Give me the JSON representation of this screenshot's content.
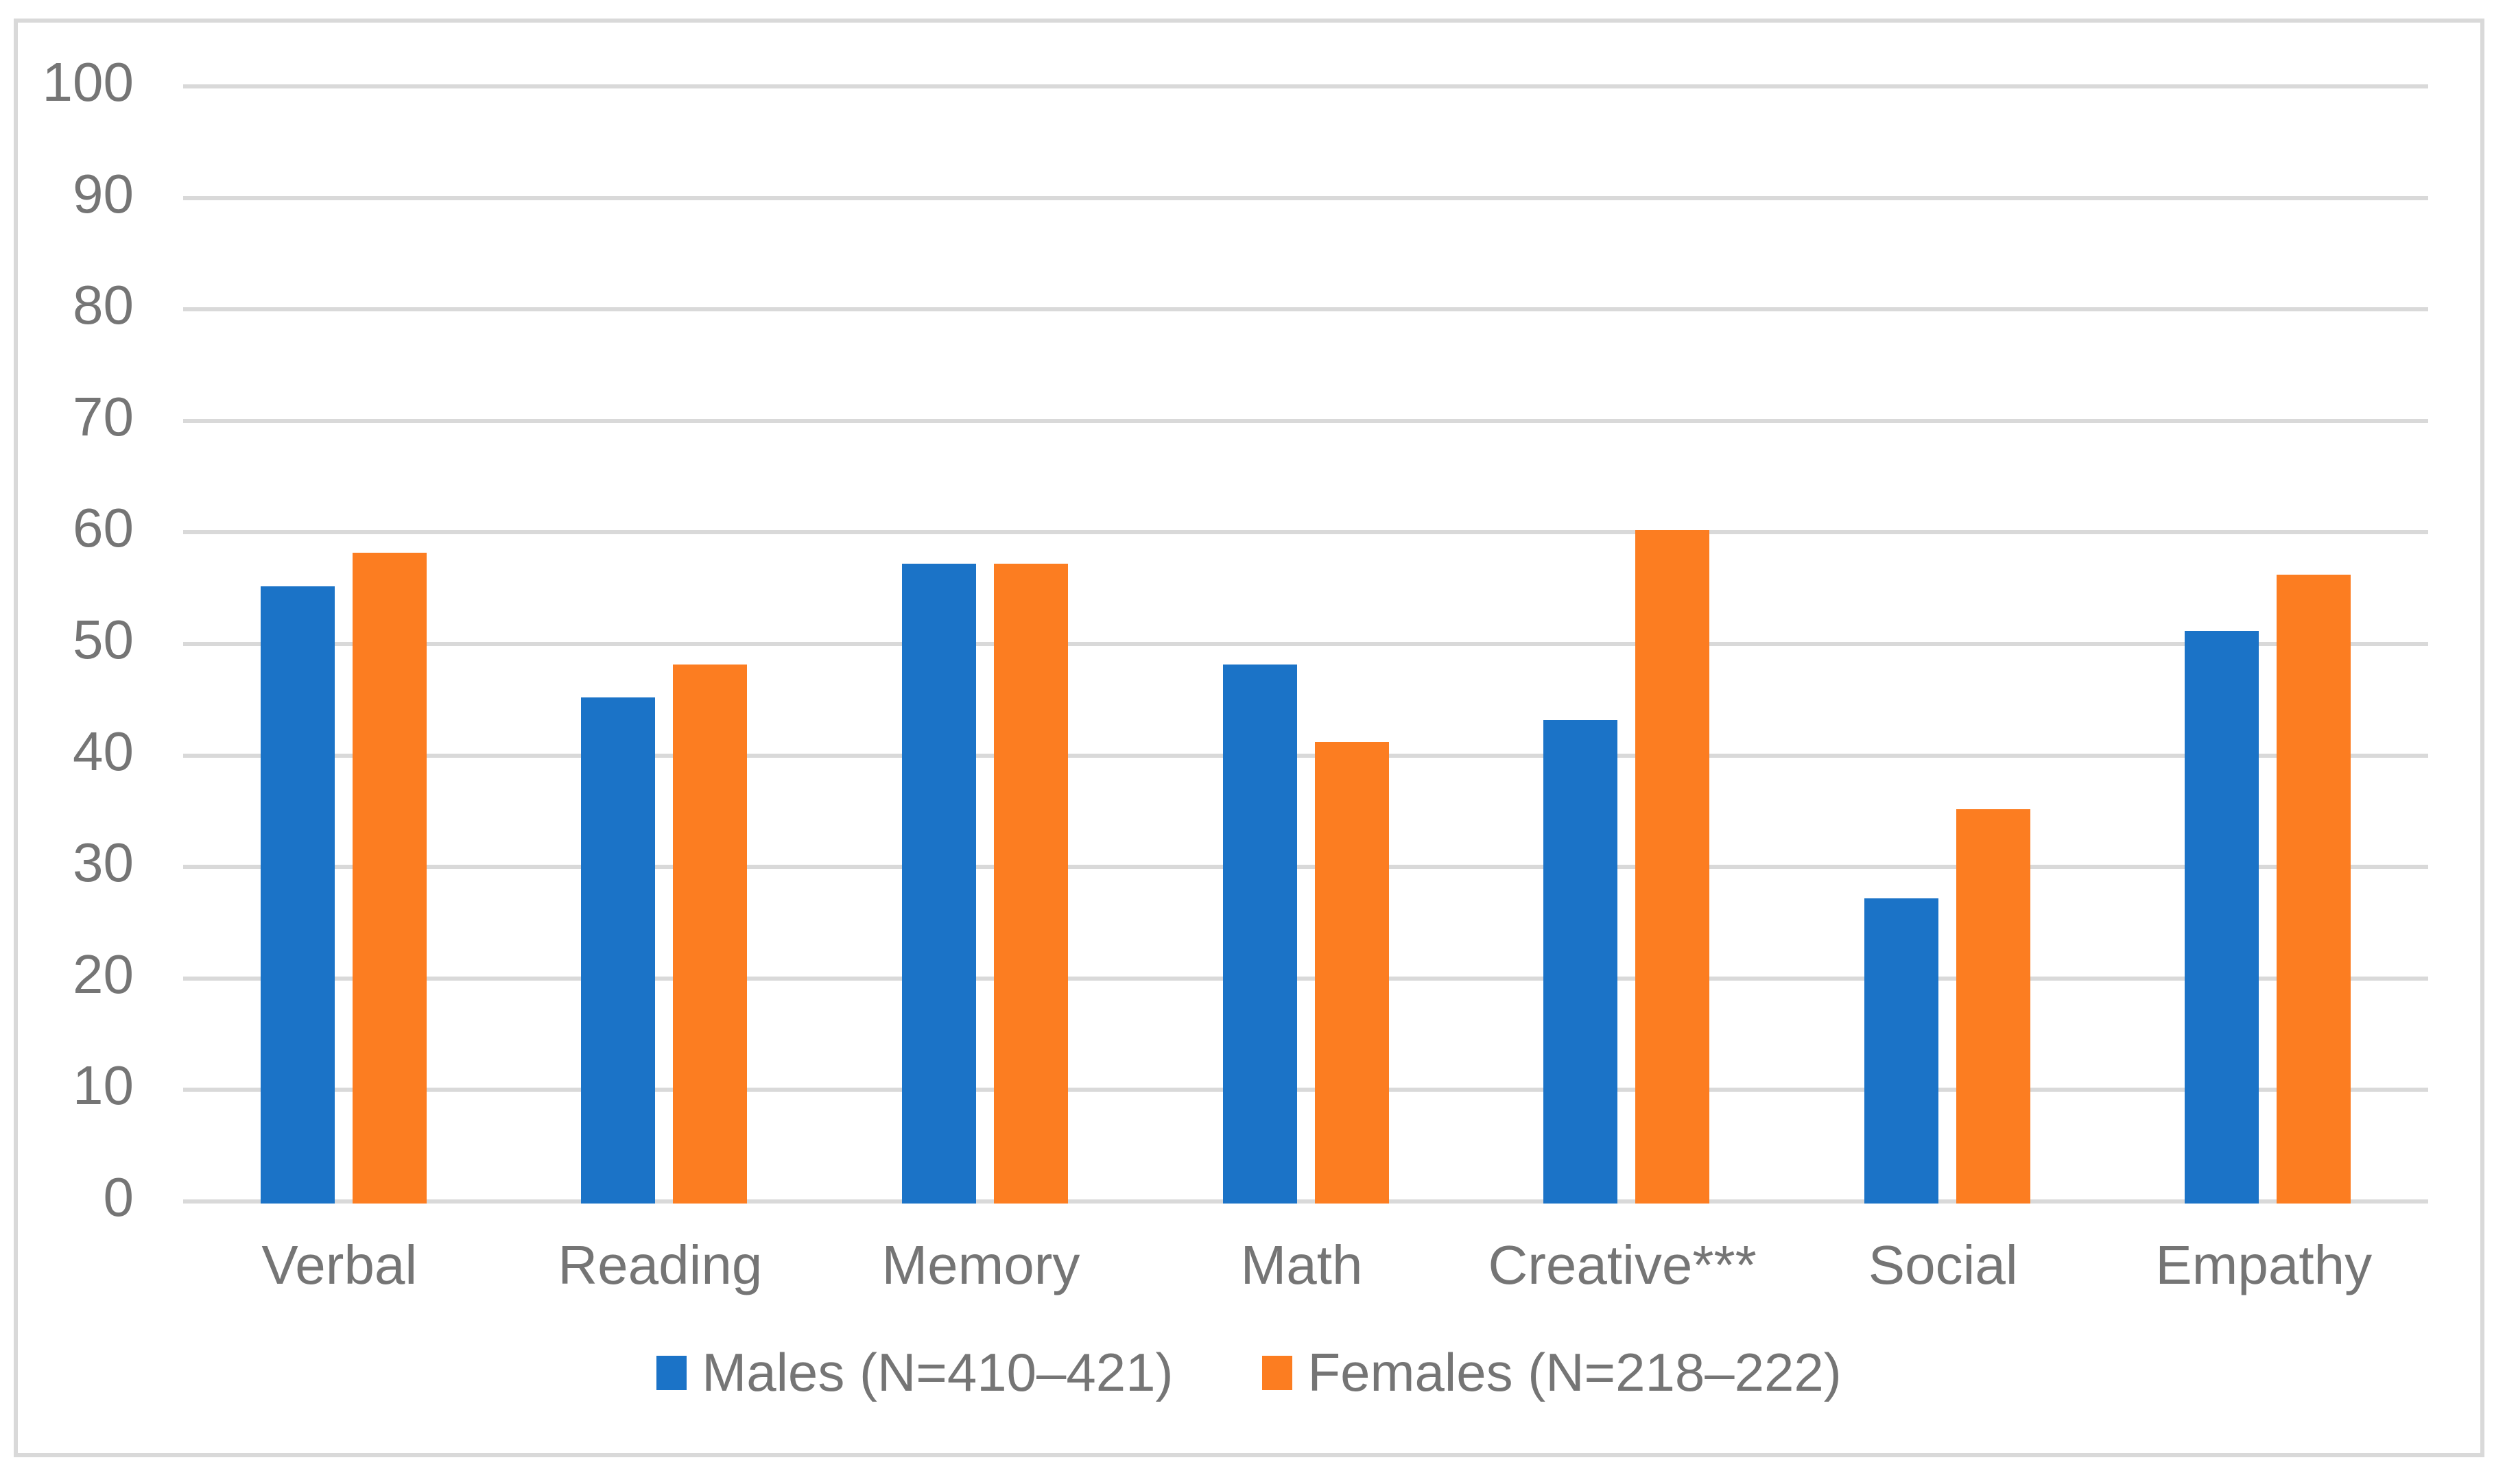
{
  "chart_data": {
    "type": "bar",
    "categories": [
      "Verbal",
      "Reading",
      "Memory",
      "Math",
      "Creative***",
      "Social",
      "Empathy"
    ],
    "series": [
      {
        "name": "Males (N=410–421)",
        "color": "#1B73C7",
        "values": [
          55,
          45,
          57,
          48,
          43,
          27,
          51
        ]
      },
      {
        "name": "Females (N=218–222)",
        "color": "#FC7D21",
        "values": [
          58,
          48,
          57,
          41,
          60,
          35,
          56
        ]
      }
    ],
    "title": "",
    "xlabel": "",
    "ylabel": "",
    "ylim": [
      0,
      100
    ],
    "ytick_step": 10,
    "ytick_labels": [
      "0",
      "10",
      "20",
      "30",
      "40",
      "50",
      "60",
      "70",
      "80",
      "90",
      "100"
    ],
    "grid": true,
    "legend_position": "bottom"
  },
  "style": {
    "gridline_color": "#D9D9D9",
    "frame_border_color": "#D9D9D9",
    "axis_text_color": "#757575",
    "background_color": "#FFFFFF"
  }
}
